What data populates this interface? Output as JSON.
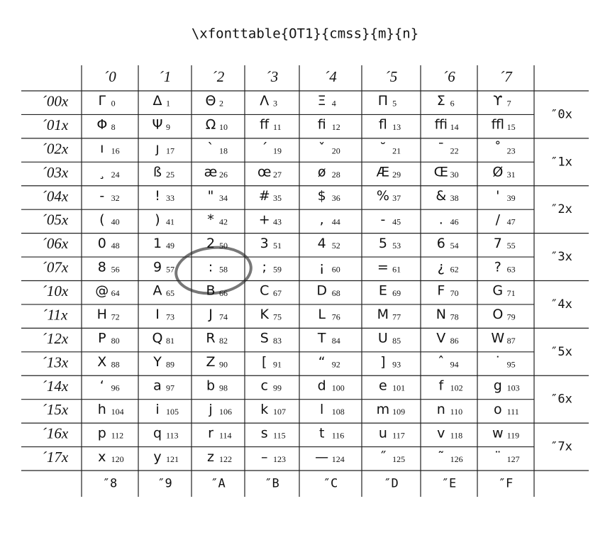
{
  "header": {
    "title": "\\xfonttable{OT1}{cmss}{m}{n}"
  },
  "table": {
    "columns": [
      "´0",
      "´1",
      "´2",
      "´3",
      "´4",
      "´5",
      "´6",
      "´7"
    ],
    "footer": [
      "″8",
      "″9",
      "″A",
      "″B",
      "″C",
      "″D",
      "″E",
      "″F"
    ],
    "row_groups": [
      "″0x",
      "″1x",
      "″2x",
      "″3x",
      "″4x",
      "″5x",
      "″6x",
      "″7x"
    ],
    "rows": [
      {
        "label": "´00x",
        "cells": [
          [
            "Γ",
            0
          ],
          [
            "Δ",
            1
          ],
          [
            "Θ",
            2
          ],
          [
            "Λ",
            3
          ],
          [
            "Ξ",
            4
          ],
          [
            "Π",
            5
          ],
          [
            "Σ",
            6
          ],
          [
            "ϒ",
            7
          ]
        ]
      },
      {
        "label": "´01x",
        "cells": [
          [
            "Φ",
            8
          ],
          [
            "Ψ",
            9
          ],
          [
            "Ω",
            10
          ],
          [
            "ff",
            11
          ],
          [
            "fi",
            12
          ],
          [
            "fl",
            13
          ],
          [
            "ffi",
            14
          ],
          [
            "ffl",
            15
          ]
        ]
      },
      {
        "label": "´02x",
        "cells": [
          [
            "ı",
            16
          ],
          [
            "ȷ",
            17
          ],
          [
            "`",
            18
          ],
          [
            "´",
            19
          ],
          [
            "ˇ",
            20
          ],
          [
            "˘",
            21
          ],
          [
            "¯",
            22
          ],
          [
            "˚",
            23
          ]
        ]
      },
      {
        "label": "´03x",
        "cells": [
          [
            "¸",
            24
          ],
          [
            "ß",
            25
          ],
          [
            "æ",
            26
          ],
          [
            "œ",
            27
          ],
          [
            "ø",
            28
          ],
          [
            "Æ",
            29
          ],
          [
            "Œ",
            30
          ],
          [
            "Ø",
            31
          ]
        ]
      },
      {
        "label": "´04x",
        "cells": [
          [
            "-",
            32
          ],
          [
            "!",
            33
          ],
          [
            "\"",
            34
          ],
          [
            "#",
            35
          ],
          [
            "$",
            36
          ],
          [
            "%",
            37
          ],
          [
            "&",
            38
          ],
          [
            "'",
            39
          ]
        ]
      },
      {
        "label": "´05x",
        "cells": [
          [
            "(",
            40
          ],
          [
            ")",
            41
          ],
          [
            "*",
            42
          ],
          [
            "+",
            43
          ],
          [
            ",",
            44
          ],
          [
            "-",
            45
          ],
          [
            ".",
            46
          ],
          [
            "/",
            47
          ]
        ]
      },
      {
        "label": "´06x",
        "cells": [
          [
            "0",
            48
          ],
          [
            "1",
            49
          ],
          [
            "2",
            50
          ],
          [
            "3",
            51
          ],
          [
            "4",
            52
          ],
          [
            "5",
            53
          ],
          [
            "6",
            54
          ],
          [
            "7",
            55
          ]
        ]
      },
      {
        "label": "´07x",
        "cells": [
          [
            "8",
            56
          ],
          [
            "9",
            57
          ],
          [
            ":",
            58
          ],
          [
            ";",
            59
          ],
          [
            "¡",
            60
          ],
          [
            "=",
            61
          ],
          [
            "¿",
            62
          ],
          [
            "?",
            63
          ]
        ]
      },
      {
        "label": "´10x",
        "cells": [
          [
            "@",
            64
          ],
          [
            "A",
            65
          ],
          [
            "B",
            66
          ],
          [
            "C",
            67
          ],
          [
            "D",
            68
          ],
          [
            "E",
            69
          ],
          [
            "F",
            70
          ],
          [
            "G",
            71
          ]
        ]
      },
      {
        "label": "´11x",
        "cells": [
          [
            "H",
            72
          ],
          [
            "I",
            73
          ],
          [
            "J",
            74
          ],
          [
            "K",
            75
          ],
          [
            "L",
            76
          ],
          [
            "M",
            77
          ],
          [
            "N",
            78
          ],
          [
            "O",
            79
          ]
        ]
      },
      {
        "label": "´12x",
        "cells": [
          [
            "P",
            80
          ],
          [
            "Q",
            81
          ],
          [
            "R",
            82
          ],
          [
            "S",
            83
          ],
          [
            "T",
            84
          ],
          [
            "U",
            85
          ],
          [
            "V",
            86
          ],
          [
            "W",
            87
          ]
        ]
      },
      {
        "label": "´13x",
        "cells": [
          [
            "X",
            88
          ],
          [
            "Y",
            89
          ],
          [
            "Z",
            90
          ],
          [
            "[",
            91
          ],
          [
            "“",
            92
          ],
          [
            "]",
            93
          ],
          [
            "ˆ",
            94
          ],
          [
            "˙",
            95
          ]
        ]
      },
      {
        "label": "´14x",
        "cells": [
          [
            "‘",
            96
          ],
          [
            "a",
            97
          ],
          [
            "b",
            98
          ],
          [
            "c",
            99
          ],
          [
            "d",
            100
          ],
          [
            "e",
            101
          ],
          [
            "f",
            102
          ],
          [
            "g",
            103
          ]
        ]
      },
      {
        "label": "´15x",
        "cells": [
          [
            "h",
            104
          ],
          [
            "i",
            105
          ],
          [
            "j",
            106
          ],
          [
            "k",
            107
          ],
          [
            "l",
            108
          ],
          [
            "m",
            109
          ],
          [
            "n",
            110
          ],
          [
            "o",
            111
          ]
        ]
      },
      {
        "label": "´16x",
        "cells": [
          [
            "p",
            112
          ],
          [
            "q",
            113
          ],
          [
            "r",
            114
          ],
          [
            "s",
            115
          ],
          [
            "t",
            116
          ],
          [
            "u",
            117
          ],
          [
            "v",
            118
          ],
          [
            "w",
            119
          ]
        ]
      },
      {
        "label": "´17x",
        "cells": [
          [
            "x",
            120
          ],
          [
            "y",
            121
          ],
          [
            "z",
            122
          ],
          [
            "–",
            123
          ],
          [
            "—",
            124
          ],
          [
            "˝",
            125
          ],
          [
            "˜",
            126
          ],
          [
            "¨",
            127
          ]
        ]
      }
    ]
  }
}
